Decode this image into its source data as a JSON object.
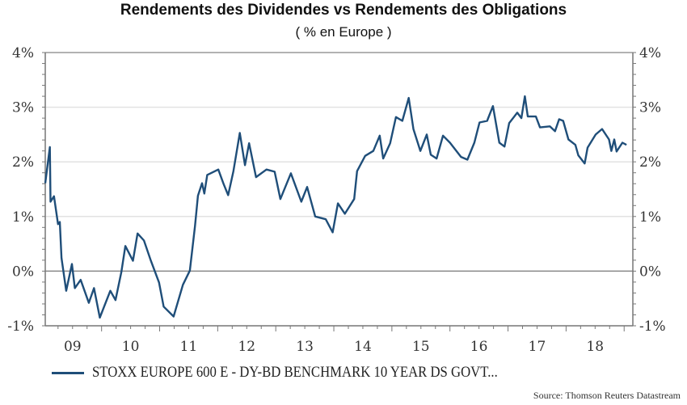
{
  "chart_data": {
    "type": "line",
    "title": "Rendements des Dividendes vs Rendements des Obligations",
    "subtitle": "( % en Europe )",
    "xlabel": "",
    "ylabel": "",
    "xlim": [
      2009.03,
      2019.15
    ],
    "ylim": [
      -1,
      4
    ],
    "x_tick_labels": [
      {
        "label": "09",
        "at": 2009.5
      },
      {
        "label": "10",
        "at": 2010.5
      },
      {
        "label": "11",
        "at": 2011.5
      },
      {
        "label": "12",
        "at": 2012.5
      },
      {
        "label": "13",
        "at": 2013.5
      },
      {
        "label": "14",
        "at": 2014.5
      },
      {
        "label": "15",
        "at": 2015.5
      },
      {
        "label": "16",
        "at": 2016.5
      },
      {
        "label": "17",
        "at": 2017.5
      },
      {
        "label": "18",
        "at": 2018.5
      }
    ],
    "y_ticks": [
      {
        "label": "4%",
        "value": 4
      },
      {
        "label": "3%",
        "value": 3
      },
      {
        "label": "2%",
        "value": 2
      },
      {
        "label": "1%",
        "value": 1
      },
      {
        "label": "0%",
        "value": 0
      },
      {
        "label": "-1%",
        "value": -1
      }
    ],
    "grid": true,
    "legend_position": "bottom",
    "series": [
      {
        "name": "STOXX EUROPE 600 E - DY-BD BENCHMARK 10 YEAR DS GOVT...",
        "color": "#1f4e79",
        "x": [
          2009.03,
          2009.11,
          2009.12,
          2009.18,
          2009.25,
          2009.28,
          2009.31,
          2009.39,
          2009.49,
          2009.54,
          2009.64,
          2009.78,
          2009.87,
          2009.97,
          2010.15,
          2010.24,
          2010.34,
          2010.41,
          2010.54,
          2010.62,
          2010.73,
          2010.85,
          2010.99,
          2011.07,
          2011.24,
          2011.4,
          2011.52,
          2011.61,
          2011.66,
          2011.73,
          2011.77,
          2011.82,
          2012.01,
          2012.1,
          2012.18,
          2012.27,
          2012.38,
          2012.47,
          2012.54,
          2012.66,
          2012.84,
          2012.98,
          2013.08,
          2013.26,
          2013.44,
          2013.54,
          2013.68,
          2013.86,
          2013.98,
          2014.07,
          2014.19,
          2014.35,
          2014.4,
          2014.54,
          2014.68,
          2014.79,
          2014.85,
          2014.97,
          2015.07,
          2015.18,
          2015.29,
          2015.37,
          2015.49,
          2015.6,
          2015.67,
          2015.77,
          2015.88,
          2016.0,
          2016.19,
          2016.3,
          2016.42,
          2016.51,
          2016.64,
          2016.74,
          2016.85,
          2016.94,
          2017.02,
          2017.16,
          2017.23,
          2017.29,
          2017.34,
          2017.48,
          2017.55,
          2017.72,
          2017.81,
          2017.88,
          2017.95,
          2018.04,
          2018.16,
          2018.21,
          2018.32,
          2018.37,
          2018.51,
          2018.62,
          2018.74,
          2018.78,
          2018.83,
          2018.87,
          2018.97,
          2019.04
        ],
        "y": [
          1.61,
          2.27,
          1.27,
          1.37,
          0.86,
          0.9,
          0.24,
          -0.36,
          0.13,
          -0.31,
          -0.16,
          -0.58,
          -0.31,
          -0.85,
          -0.36,
          -0.53,
          -0.02,
          0.46,
          0.19,
          0.69,
          0.56,
          0.19,
          -0.21,
          -0.65,
          -0.83,
          -0.25,
          0.01,
          0.83,
          1.38,
          1.61,
          1.42,
          1.76,
          1.86,
          1.6,
          1.39,
          1.83,
          2.53,
          1.94,
          2.34,
          1.72,
          1.86,
          1.82,
          1.32,
          1.79,
          1.27,
          1.54,
          1.0,
          0.95,
          0.71,
          1.24,
          1.05,
          1.32,
          1.83,
          2.11,
          2.2,
          2.48,
          2.06,
          2.34,
          2.82,
          2.75,
          3.17,
          2.6,
          2.2,
          2.5,
          2.13,
          2.06,
          2.48,
          2.35,
          2.09,
          2.04,
          2.35,
          2.72,
          2.75,
          3.02,
          2.35,
          2.28,
          2.71,
          2.9,
          2.8,
          3.2,
          2.83,
          2.83,
          2.63,
          2.65,
          2.56,
          2.78,
          2.75,
          2.41,
          2.31,
          2.12,
          1.97,
          2.26,
          2.5,
          2.6,
          2.41,
          2.2,
          2.41,
          2.19,
          2.35,
          2.31
        ]
      }
    ],
    "source": "Source: Thomson Reuters Datastream"
  }
}
